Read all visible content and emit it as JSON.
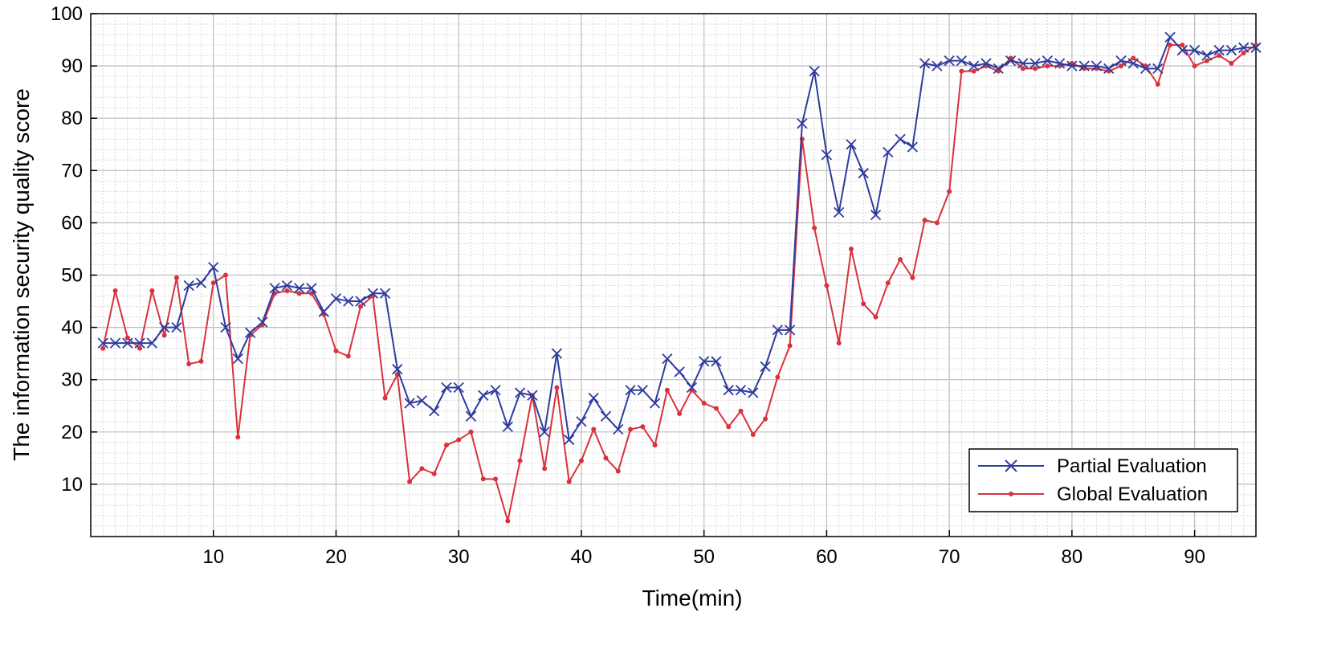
{
  "chart_data": {
    "type": "line",
    "title": "",
    "xlabel": "Time(min)",
    "ylabel": "The information security quality score",
    "xlim": [
      0,
      95
    ],
    "ylim": [
      0,
      100
    ],
    "xticks": [
      10,
      20,
      30,
      40,
      50,
      60,
      70,
      80,
      90
    ],
    "yticks": [
      10,
      20,
      30,
      40,
      50,
      60,
      70,
      80,
      90,
      100
    ],
    "grid": true,
    "legend_position": "bottom-right",
    "x": [
      1,
      2,
      3,
      4,
      5,
      6,
      7,
      8,
      9,
      10,
      11,
      12,
      13,
      14,
      15,
      16,
      17,
      18,
      19,
      20,
      21,
      22,
      23,
      24,
      25,
      26,
      27,
      28,
      29,
      30,
      31,
      32,
      33,
      34,
      35,
      36,
      37,
      38,
      39,
      40,
      41,
      42,
      43,
      44,
      45,
      46,
      47,
      48,
      49,
      50,
      51,
      52,
      53,
      54,
      55,
      56,
      57,
      58,
      59,
      60,
      61,
      62,
      63,
      64,
      65,
      66,
      67,
      68,
      69,
      70,
      71,
      72,
      73,
      74,
      75,
      76,
      77,
      78,
      79,
      80,
      81,
      82,
      83,
      84,
      85,
      86,
      87,
      88,
      89,
      90,
      91,
      92,
      93,
      94,
      95
    ],
    "series": [
      {
        "name": "Partial Evaluation",
        "color": "#2e3b9e",
        "marker": "x",
        "values": [
          37,
          37,
          37,
          37,
          37,
          40,
          40,
          48,
          48.5,
          51.5,
          40,
          34,
          39,
          41,
          47.5,
          48,
          47.5,
          47.5,
          43,
          45.5,
          45,
          45,
          46.5,
          46.5,
          32,
          25.5,
          26,
          24,
          28.5,
          28.5,
          23,
          27,
          28,
          21,
          27.5,
          27,
          20,
          35,
          18.5,
          22,
          26.5,
          23,
          20.5,
          28,
          28,
          25.5,
          34,
          31.5,
          28.5,
          33.5,
          33.5,
          28,
          28,
          27.5,
          32.5,
          39.5,
          39.5,
          79,
          89,
          73,
          62,
          75,
          69.5,
          61.5,
          73.5,
          76,
          74.5,
          90.5,
          90,
          91,
          91,
          90,
          90.5,
          89.5,
          91,
          90.5,
          90.5,
          91,
          90.5,
          90,
          90,
          90,
          89.5,
          91,
          90.5,
          89.5,
          89.5,
          95.5,
          93,
          93,
          92,
          93,
          93,
          93.5,
          93.5
        ]
      },
      {
        "name": "Global Evaluation",
        "color": "#d8323c",
        "marker": "dot",
        "values": [
          36,
          47,
          38,
          36,
          47,
          38.5,
          49.5,
          33,
          33.5,
          48.5,
          50,
          19,
          38.5,
          40.5,
          46.5,
          47,
          46.5,
          46.5,
          42.5,
          35.5,
          34.5,
          44,
          46,
          26.5,
          31,
          10.5,
          13,
          12,
          17.5,
          18.5,
          20,
          11,
          11,
          3,
          14.5,
          27,
          13,
          28.5,
          10.5,
          14.5,
          20.5,
          15,
          12.5,
          20.5,
          21,
          17.5,
          28,
          23.5,
          28,
          25.5,
          24.5,
          21,
          24,
          19.5,
          22.5,
          30.5,
          36.5,
          76,
          59,
          48,
          37,
          55,
          44.5,
          42,
          48.5,
          53,
          49.5,
          60.5,
          60,
          66,
          89,
          89,
          90,
          89,
          91.5,
          89.5,
          89.5,
          90,
          90,
          90.5,
          89.5,
          89.5,
          89,
          90,
          91.5,
          90,
          86.5,
          94,
          94,
          90,
          91,
          92,
          90.5,
          92.5,
          94
        ]
      }
    ]
  }
}
